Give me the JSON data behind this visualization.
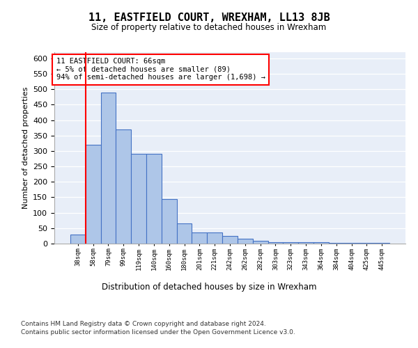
{
  "title": "11, EASTFIELD COURT, WREXHAM, LL13 8JB",
  "subtitle": "Size of property relative to detached houses in Wrexham",
  "xlabel": "Distribution of detached houses by size in Wrexham",
  "ylabel": "Number of detached properties",
  "categories": [
    "38sqm",
    "58sqm",
    "79sqm",
    "99sqm",
    "119sqm",
    "140sqm",
    "160sqm",
    "180sqm",
    "201sqm",
    "221sqm",
    "242sqm",
    "262sqm",
    "282sqm",
    "303sqm",
    "323sqm",
    "343sqm",
    "364sqm",
    "384sqm",
    "404sqm",
    "425sqm",
    "445sqm"
  ],
  "values": [
    30,
    320,
    490,
    370,
    290,
    290,
    145,
    65,
    35,
    35,
    25,
    15,
    10,
    5,
    5,
    5,
    5,
    2,
    2,
    2,
    2
  ],
  "bar_color": "#aec6e8",
  "bar_edge_color": "#4472c4",
  "vline_x": 1.0,
  "vline_color": "red",
  "annotation_text": "11 EASTFIELD COURT: 66sqm\n← 5% of detached houses are smaller (89)\n94% of semi-detached houses are larger (1,698) →",
  "annotation_box_color": "white",
  "annotation_box_edge": "red",
  "ylim": [
    0,
    620
  ],
  "yticks": [
    0,
    50,
    100,
    150,
    200,
    250,
    300,
    350,
    400,
    450,
    500,
    550,
    600
  ],
  "background_color": "#e8eef8",
  "footer_line1": "Contains HM Land Registry data © Crown copyright and database right 2024.",
  "footer_line2": "Contains public sector information licensed under the Open Government Licence v3.0."
}
